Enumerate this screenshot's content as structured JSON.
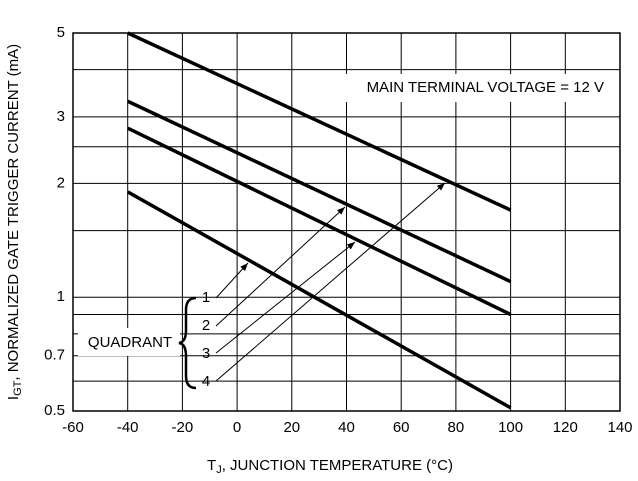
{
  "chart_data": {
    "type": "line",
    "x_label": {
      "main": "T",
      "sub": "J",
      "rest": ", JUNCTION TEMPERATURE (°C)"
    },
    "y_label": {
      "main": "I",
      "sub": "GT",
      "rest": ", NORMALIZED GATE TRIGGER CURRENT (mA)"
    },
    "annotation": "MAIN TERMINAL VOLTAGE = 12 V",
    "legend_title": "QUADRANT",
    "x": [
      -40,
      100
    ],
    "series": [
      {
        "name": "1",
        "color": "#000000",
        "values": [
          1.9,
          0.51
        ]
      },
      {
        "name": "2",
        "color": "#000000",
        "values": [
          3.3,
          1.1
        ]
      },
      {
        "name": "3",
        "color": "#000000",
        "values": [
          2.8,
          0.9
        ]
      },
      {
        "name": "4",
        "color": "#000000",
        "values": [
          5,
          1.7
        ]
      }
    ],
    "xlim": [
      -60,
      140
    ],
    "xticks": [
      -60,
      -40,
      -20,
      0,
      20,
      40,
      60,
      80,
      100,
      120,
      140
    ],
    "ylim": [
      0.5,
      5
    ],
    "yticks": [
      0.5,
      0.7,
      1,
      2,
      3,
      5
    ],
    "y_minor_grid": [
      0.6,
      0.8,
      0.9,
      1.5,
      2.5,
      4
    ],
    "log_y": true,
    "grid": true
  }
}
